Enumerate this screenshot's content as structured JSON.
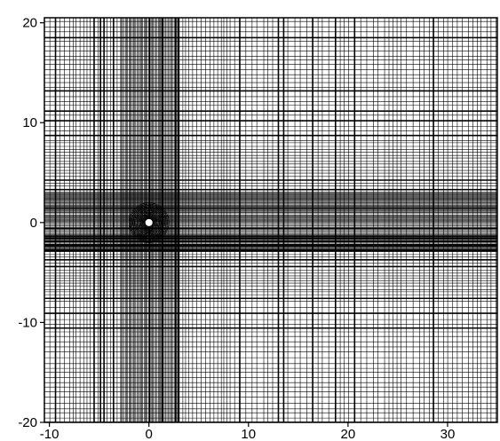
{
  "chart_data": {
    "type": "mesh",
    "title": "",
    "xlabel": "",
    "ylabel": "",
    "xlim": [
      -10.5,
      35
    ],
    "ylim": [
      -20,
      20.5
    ],
    "x_ticks": [
      -10,
      0,
      10,
      20,
      30
    ],
    "y_ticks": [
      -20,
      -10,
      0,
      10,
      20
    ],
    "x_tick_labels": [
      "-10",
      "0",
      "10",
      "20",
      "30"
    ],
    "y_tick_labels": [
      "-20",
      "-10",
      "0",
      "10",
      "20"
    ],
    "body": {
      "shape": "cylinder",
      "center": [
        0,
        0
      ],
      "fill": "#ffffff"
    },
    "grid_refinement": {
      "dense_horizontal_band": [
        -3,
        3
      ],
      "dense_vertical_band": [
        -3,
        3
      ],
      "near_body_polar_region_radius": 2
    },
    "colors": {
      "mesh": "#000000",
      "background": "#ffffff",
      "body": "#ffffff"
    }
  }
}
